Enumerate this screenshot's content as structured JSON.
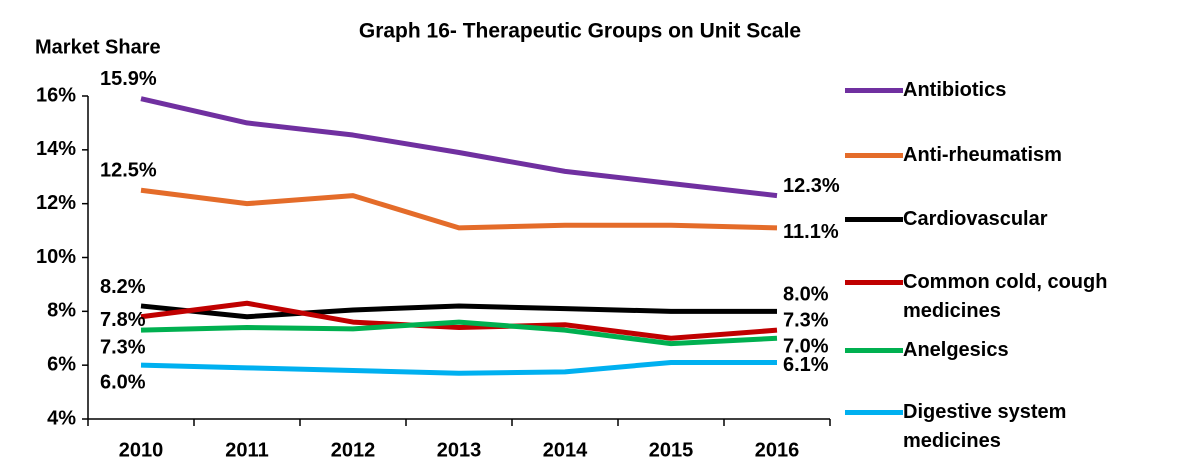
{
  "chart_data": {
    "type": "line",
    "title": "Graph 16- Therapeutic Groups on Unit Scale",
    "y_label": "Market Share",
    "categories": [
      "2010",
      "2011",
      "2012",
      "2013",
      "2014",
      "2015",
      "2016"
    ],
    "ylim": [
      4,
      16
    ],
    "yticks": [
      {
        "value": 4,
        "label": "4%"
      },
      {
        "value": 6,
        "label": "6%"
      },
      {
        "value": 8,
        "label": "8%"
      },
      {
        "value": 10,
        "label": "10%"
      },
      {
        "value": 12,
        "label": "12%"
      },
      {
        "value": 14,
        "label": "14%"
      },
      {
        "value": 16,
        "label": "16%"
      }
    ],
    "legend": "right",
    "series": [
      {
        "name": "Antibiotics",
        "color": "#7030a0",
        "values": [
          15.9,
          15.0,
          14.55,
          13.9,
          13.2,
          12.75,
          12.3
        ],
        "value_labels": [
          "15.9%",
          null,
          null,
          null,
          null,
          null,
          "12.3%"
        ]
      },
      {
        "name": "Anti-rheumatism",
        "color": "#e46c2a",
        "values": [
          12.5,
          12.0,
          12.3,
          11.1,
          11.2,
          11.2,
          11.1
        ],
        "value_labels": [
          "12.5%",
          null,
          null,
          null,
          null,
          null,
          "11.1%"
        ]
      },
      {
        "name": "Cardiovascular",
        "color": "#000000",
        "values": [
          8.2,
          7.8,
          8.05,
          8.2,
          8.1,
          8.0,
          8.0
        ],
        "value_labels": [
          "8.2%",
          null,
          null,
          null,
          null,
          null,
          "8.0%"
        ]
      },
      {
        "name": "Common cold, cough medicines",
        "color": "#c00000",
        "values": [
          7.8,
          8.3,
          7.6,
          7.4,
          7.5,
          7.0,
          7.3
        ],
        "value_labels": [
          "7.8%",
          null,
          null,
          null,
          null,
          null,
          "7.3%"
        ]
      },
      {
        "name": "Anelgesics",
        "color": "#00b050",
        "values": [
          7.3,
          7.4,
          7.35,
          7.6,
          7.3,
          6.8,
          7.0
        ],
        "value_labels": [
          "7.3%",
          null,
          null,
          null,
          null,
          null,
          "7.0%"
        ]
      },
      {
        "name": "Digestive system medicines",
        "color": "#00b0f0",
        "values": [
          6.0,
          5.9,
          5.8,
          5.7,
          5.75,
          6.1,
          6.1
        ],
        "value_labels": [
          "6.0%",
          null,
          null,
          null,
          null,
          null,
          "6.1%"
        ]
      }
    ]
  }
}
